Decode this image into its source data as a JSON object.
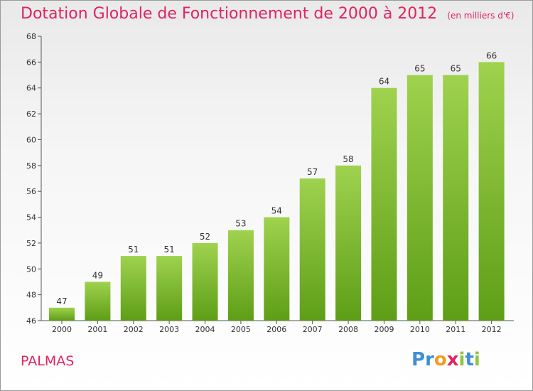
{
  "title": "Dotation Globale de Fonctionnement de 2000 à 2012",
  "unit_label": "(en milliers d'€)",
  "commune": "PALMAS",
  "logo": {
    "letters": [
      "P",
      "r",
      "o",
      "x",
      "i",
      "t",
      "i"
    ],
    "colors": [
      "#3d8fd6",
      "#3d8fd6",
      "#f39c1f",
      "#e0245e",
      "#8cc63f",
      "#3d8fd6",
      "#8cc63f"
    ]
  },
  "colors": {
    "title": "#e0245e",
    "bar_top": "#9fd24e",
    "bar_bottom": "#5e9e17",
    "axis": "#555555"
  },
  "chart_data": {
    "type": "bar",
    "title": "Dotation Globale de Fonctionnement de 2000 à 2012",
    "subtitle": "(en milliers d'€)",
    "categories": [
      "2000",
      "2001",
      "2002",
      "2003",
      "2004",
      "2005",
      "2006",
      "2007",
      "2008",
      "2009",
      "2010",
      "2011",
      "2012"
    ],
    "values": [
      47,
      49,
      51,
      51,
      52,
      53,
      54,
      57,
      58,
      64,
      65,
      65,
      66
    ],
    "ylim": [
      46,
      68
    ],
    "yticks": [
      46,
      48,
      50,
      52,
      54,
      56,
      58,
      60,
      62,
      64,
      66,
      68
    ],
    "grid": false,
    "legend": "none"
  }
}
